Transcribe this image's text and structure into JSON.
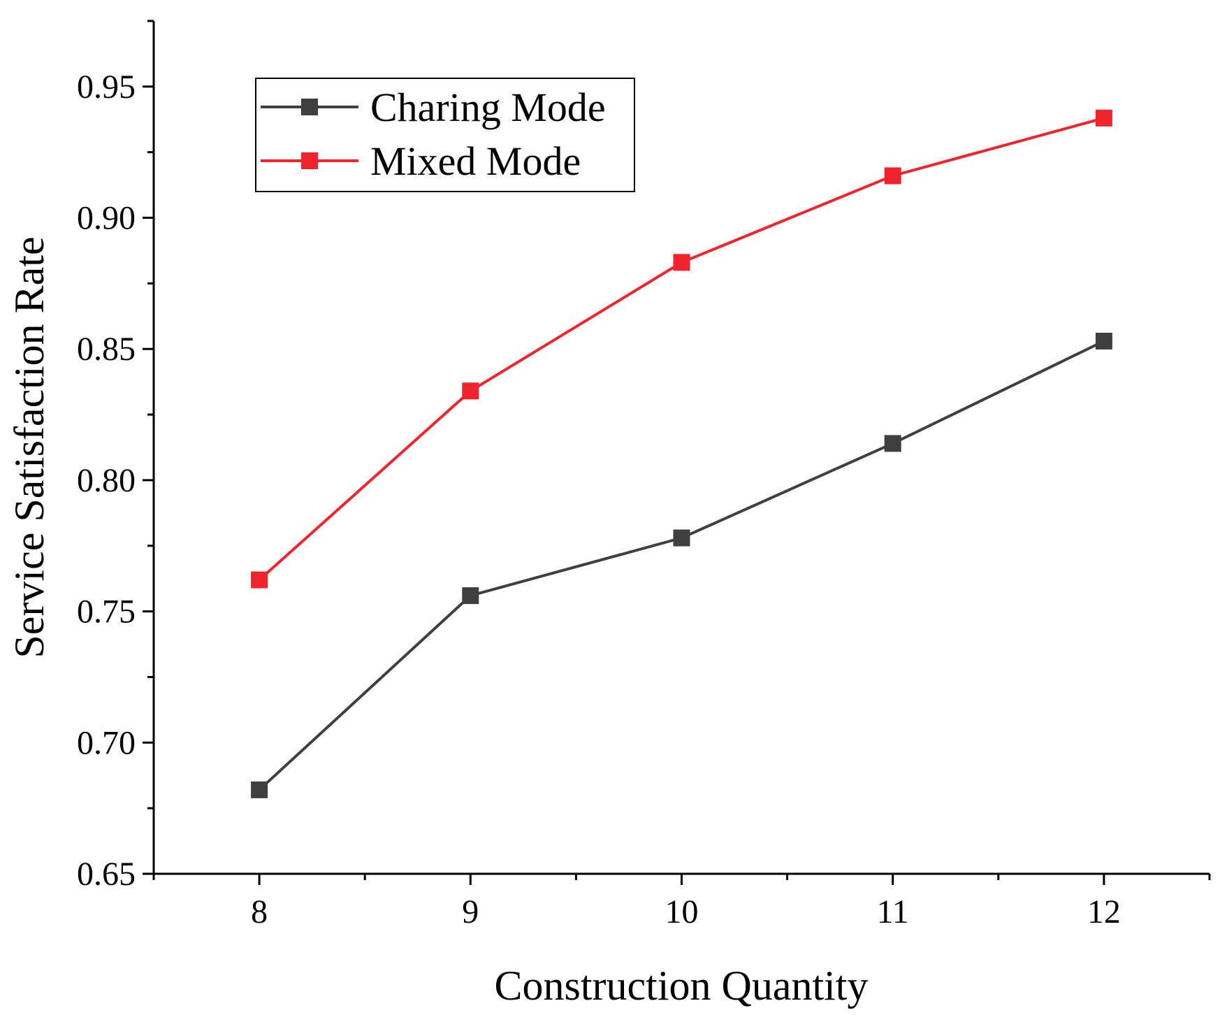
{
  "chart_data": {
    "type": "line",
    "title": "",
    "xlabel": "Construction Quantity",
    "ylabel": "Service Satisfaction Rate",
    "x": [
      8,
      9,
      10,
      11,
      12
    ],
    "x_tick_labels": [
      "8",
      "9",
      "10",
      "11",
      "12"
    ],
    "xlim": [
      7.5,
      12.5
    ],
    "ylim": [
      0.65,
      0.975
    ],
    "y_ticks": [
      0.65,
      0.7,
      0.75,
      0.8,
      0.85,
      0.9,
      0.95
    ],
    "y_tick_labels": [
      "0.65",
      "0.70",
      "0.75",
      "0.80",
      "0.85",
      "0.90",
      "0.95"
    ],
    "grid": false,
    "legend_position": "top-left",
    "series": [
      {
        "name": "Charing Mode",
        "color": "#3f3f3f",
        "marker": "square",
        "values": [
          0.682,
          0.756,
          0.778,
          0.814,
          0.853
        ]
      },
      {
        "name": "Mixed Mode",
        "color": "#f0242c",
        "marker": "square",
        "values": [
          0.762,
          0.834,
          0.883,
          0.916,
          0.938
        ]
      }
    ]
  }
}
